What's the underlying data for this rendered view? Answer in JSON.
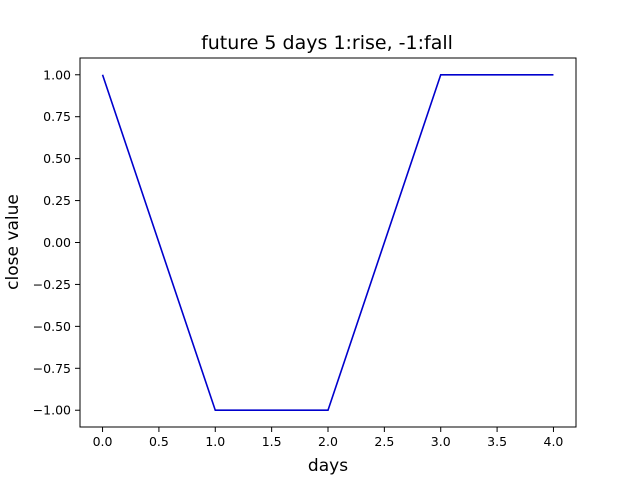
{
  "chart_data": {
    "type": "line",
    "title": "future 5 days  1:rise, -1:fall",
    "xlabel": "days",
    "ylabel": "close value",
    "x": [
      0,
      1,
      2,
      3,
      4
    ],
    "series": [
      {
        "values": [
          1,
          -1,
          -1,
          1,
          1
        ],
        "color": "#0000cd"
      }
    ],
    "xlim": [
      -0.2,
      4.2
    ],
    "ylim": [
      -1.1,
      1.1
    ],
    "xticks": [
      0.0,
      0.5,
      1.0,
      1.5,
      2.0,
      2.5,
      3.0,
      3.5,
      4.0
    ],
    "xtick_labels": [
      "0.0",
      "0.5",
      "1.0",
      "1.5",
      "2.0",
      "2.5",
      "3.0",
      "3.5",
      "4.0"
    ],
    "yticks": [
      1.0,
      0.75,
      0.5,
      0.25,
      0.0,
      -0.25,
      -0.5,
      -0.75,
      -1.0
    ],
    "ytick_labels": [
      "1.00",
      "0.75",
      "0.50",
      "0.25",
      "0.00",
      "−0.25",
      "−0.50",
      "−0.75",
      "−1.00"
    ],
    "grid": false,
    "legend": "none"
  }
}
